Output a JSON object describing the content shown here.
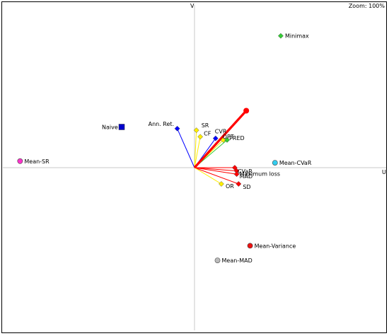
{
  "zoom_label": "Zoom: 100%",
  "chart_data": {
    "type": "scatter",
    "title": "",
    "xlabel": "U",
    "ylabel": "V",
    "xlim": [
      -1.0,
      1.0
    ],
    "ylim": [
      -1.0,
      1.0
    ],
    "grid": false,
    "alternatives": [
      {
        "name": "Minimax",
        "x": 0.45,
        "y": 0.81,
        "color": "#33cc33",
        "marker": "diamond"
      },
      {
        "name": "Naive",
        "x": -0.38,
        "y": 0.25,
        "color": "#0000cc",
        "marker": "square"
      },
      {
        "name": "Mean-SR",
        "x": -0.91,
        "y": 0.04,
        "color": "#ff33cc",
        "marker": "circle"
      },
      {
        "name": "Mean-CVaR",
        "x": 0.42,
        "y": 0.03,
        "color": "#33ccee",
        "marker": "circle"
      },
      {
        "name": "Mean-Variance",
        "x": 0.29,
        "y": -0.48,
        "color": "#ee1111",
        "marker": "circle"
      },
      {
        "name": "Mean-MAD",
        "x": 0.12,
        "y": -0.57,
        "color": "#bbbbbb",
        "marker": "circle"
      }
    ],
    "criteria": [
      {
        "name": "Ann. Ret.",
        "x": -0.09,
        "y": 0.24,
        "color": "#0000ff",
        "marker": "diamond"
      },
      {
        "name": "SR",
        "x": 0.01,
        "y": 0.23,
        "color": "#ffee00",
        "marker": "diamond"
      },
      {
        "name": "CF",
        "x": 0.03,
        "y": 0.19,
        "color": "#ffee00",
        "marker": "diamond"
      },
      {
        "name": "CVR",
        "x": 0.11,
        "y": 0.18,
        "color": "#0000ff",
        "marker": "diamond"
      },
      {
        "name": "OPT",
        "x": 0.15,
        "y": 0.17,
        "color": "#ffee00",
        "marker": "diamond"
      },
      {
        "name": "PRED",
        "x": 0.17,
        "y": 0.17,
        "color": "#33cc33",
        "marker": "diamond"
      },
      {
        "name": "CVaR",
        "x": 0.21,
        "y": 0.0,
        "color": "#ff0000",
        "marker": "diamond"
      },
      {
        "name": "Maximum loss",
        "x": 0.22,
        "y": -0.02,
        "color": "#ff0000",
        "marker": "diamond"
      },
      {
        "name": "MAD",
        "x": 0.22,
        "y": -0.04,
        "color": "#ff0000",
        "marker": "diamond"
      },
      {
        "name": "SD",
        "x": 0.23,
        "y": -0.1,
        "color": "#ff0000",
        "marker": "diamond"
      },
      {
        "name": "OR",
        "x": 0.14,
        "y": -0.1,
        "color": "#ffee00",
        "marker": "diamond"
      }
    ],
    "decision_axis": {
      "x": 0.27,
      "y": 0.35,
      "color": "#ff0000"
    }
  }
}
